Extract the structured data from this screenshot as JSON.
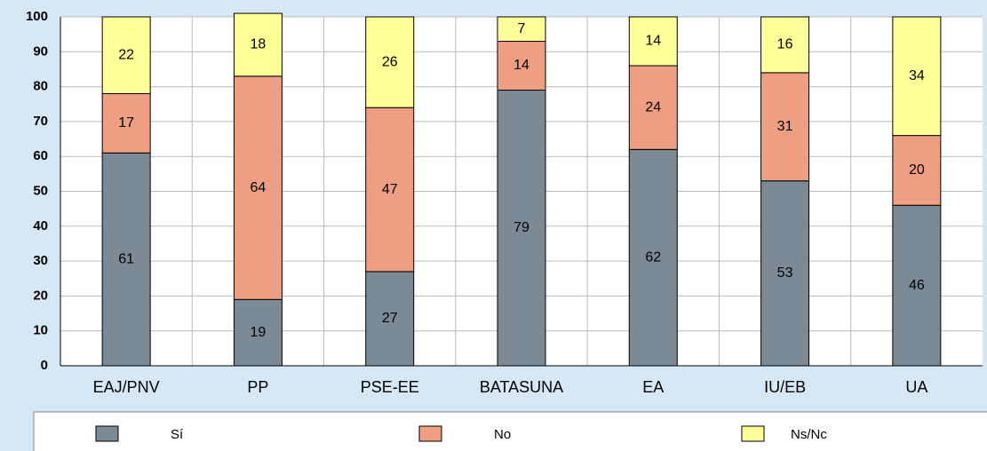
{
  "chart_data": {
    "type": "stacked_bar",
    "categories": [
      "EAJ/PNV",
      "PP",
      "PSE-EE",
      "BATASUNA",
      "EA",
      "IU/EB",
      "UA"
    ],
    "series": [
      {
        "name": "Sí",
        "color": "#7b8a94",
        "values": [
          61,
          19,
          27,
          79,
          62,
          53,
          46
        ]
      },
      {
        "name": "No",
        "color": "#ee9e82",
        "values": [
          17,
          64,
          47,
          14,
          24,
          31,
          20
        ]
      },
      {
        "name": "Ns/Nc",
        "color": "#ffff99",
        "values": [
          22,
          18,
          26,
          7,
          14,
          16,
          34
        ]
      }
    ],
    "ylim": [
      0,
      100
    ],
    "yticks": [
      0,
      10,
      20,
      30,
      40,
      50,
      60,
      70,
      80,
      90,
      100
    ],
    "grid": true,
    "legend": "bottom"
  }
}
